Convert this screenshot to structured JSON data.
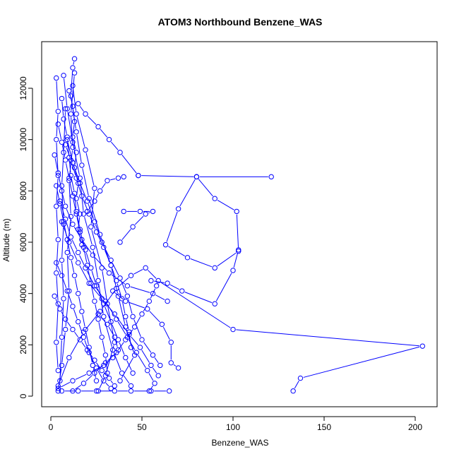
{
  "chart_data": {
    "type": "line",
    "title": "ATOM3 Northbound Benzene_WAS",
    "xlabel": "Benzene_WAS",
    "ylabel": "Altitude (m)",
    "xlim": [
      0,
      210
    ],
    "ylim": [
      0,
      13200
    ],
    "x_ticks": [
      0,
      50,
      100,
      150,
      200
    ],
    "y_ticks": [
      0,
      2000,
      4000,
      6000,
      8000,
      10000,
      12000
    ],
    "marker": "open-circle",
    "grid": false,
    "legend": "none",
    "colors": {
      "series": "#0000ff",
      "axes": "#000000"
    },
    "series": [
      {
        "points": [
          [
            4,
            200
          ],
          [
            6,
            1200
          ],
          [
            8,
            2600
          ],
          [
            10,
            4100
          ],
          [
            9,
            5600
          ],
          [
            11,
            7000
          ],
          [
            10,
            8400
          ],
          [
            12,
            9700
          ],
          [
            11,
            11000
          ],
          [
            13,
            12600
          ]
        ]
      },
      {
        "points": [
          [
            12,
            12100
          ],
          [
            14,
            11000
          ],
          [
            19,
            9600
          ],
          [
            24,
            8100
          ],
          [
            22,
            6600
          ],
          [
            28,
            5000
          ],
          [
            31,
            3600
          ],
          [
            35,
            2100
          ],
          [
            30,
            800
          ],
          [
            26,
            200
          ]
        ]
      },
      {
        "points": [
          [
            48,
            8600
          ],
          [
            80,
            8550
          ],
          [
            121,
            8550
          ]
        ]
      },
      {
        "points": [
          [
            4,
            400
          ],
          [
            10,
            1500
          ],
          [
            18,
            2500
          ],
          [
            27,
            3300
          ],
          [
            36,
            4200
          ],
          [
            44,
            4700
          ],
          [
            52,
            5000
          ],
          [
            59,
            4500
          ],
          [
            100,
            2600
          ],
          [
            204,
            1950
          ],
          [
            137,
            700
          ],
          [
            133,
            200
          ]
        ]
      },
      {
        "points": [
          [
            15,
            11400
          ],
          [
            19,
            11000
          ],
          [
            26,
            10500
          ],
          [
            32,
            10000
          ],
          [
            38,
            9500
          ],
          [
            48,
            8600
          ]
        ]
      },
      {
        "points": [
          [
            80,
            8550
          ],
          [
            70,
            7300
          ],
          [
            63,
            5900
          ],
          [
            75,
            5400
          ],
          [
            90,
            5000
          ],
          [
            103,
            5650
          ],
          [
            102,
            7200
          ],
          [
            90,
            7700
          ],
          [
            80,
            8550
          ]
        ]
      },
      {
        "points": [
          [
            40,
            7200
          ],
          [
            49,
            7200
          ],
          [
            56,
            7200
          ],
          [
            52,
            7100
          ],
          [
            45,
            6600
          ],
          [
            38,
            6000
          ]
        ]
      },
      {
        "points": [
          [
            65,
            200
          ],
          [
            55,
            200
          ],
          [
            44,
            200
          ],
          [
            35,
            200
          ],
          [
            25,
            200
          ],
          [
            15,
            200
          ],
          [
            6,
            200
          ]
        ]
      },
      {
        "points": [
          [
            5,
            600
          ],
          [
            6,
            2300
          ],
          [
            7,
            3800
          ],
          [
            6,
            5300
          ],
          [
            7,
            6700
          ],
          [
            6,
            8200
          ],
          [
            7,
            9500
          ],
          [
            8,
            11200
          ]
        ]
      },
      {
        "points": [
          [
            3,
            12400
          ],
          [
            4,
            11100
          ],
          [
            3,
            10000
          ],
          [
            4,
            8600
          ],
          [
            3,
            7400
          ],
          [
            4,
            6100
          ],
          [
            3,
            4800
          ],
          [
            4,
            3600
          ],
          [
            3,
            2100
          ],
          [
            4,
            1000
          ]
        ]
      },
      {
        "points": [
          [
            13,
            13150
          ],
          [
            12,
            12800
          ],
          [
            11,
            11700
          ],
          [
            14,
            10300
          ],
          [
            17,
            9000
          ],
          [
            21,
            7700
          ],
          [
            27,
            6300
          ],
          [
            33,
            5100
          ],
          [
            37,
            3900
          ],
          [
            41,
            2700
          ],
          [
            46,
            1600
          ],
          [
            38,
            600
          ]
        ]
      },
      {
        "points": [
          [
            7,
            12500
          ],
          [
            9,
            11200
          ],
          [
            12,
            9900
          ],
          [
            16,
            8500
          ],
          [
            18,
            7100
          ],
          [
            23,
            5800
          ],
          [
            26,
            4500
          ],
          [
            29,
            3100
          ],
          [
            34,
            1800
          ],
          [
            39,
            900
          ],
          [
            44,
            400
          ]
        ]
      },
      {
        "points": [
          [
            34,
            4100
          ],
          [
            41,
            3700
          ],
          [
            53,
            3400
          ],
          [
            61,
            2800
          ],
          [
            66,
            2100
          ],
          [
            66,
            1300
          ],
          [
            70,
            1100
          ]
        ]
      },
      {
        "points": [
          [
            6,
            6800
          ],
          [
            10,
            6000
          ],
          [
            15,
            5200
          ],
          [
            21,
            4400
          ],
          [
            28,
            3800
          ],
          [
            35,
            3200
          ],
          [
            43,
            2400
          ],
          [
            49,
            1900
          ],
          [
            55,
            1200
          ],
          [
            59,
            800
          ]
        ]
      },
      {
        "points": [
          [
            2,
            9400
          ],
          [
            4,
            8700
          ],
          [
            6,
            8000
          ],
          [
            8,
            7400
          ],
          [
            12,
            6700
          ],
          [
            17,
            6100
          ],
          [
            23,
            5500
          ],
          [
            32,
            4800
          ],
          [
            42,
            4300
          ],
          [
            56,
            4000
          ],
          [
            64,
            3700
          ]
        ]
      },
      {
        "points": [
          [
            20,
            7200
          ],
          [
            24,
            7600
          ],
          [
            27,
            8000
          ],
          [
            31,
            8400
          ],
          [
            37,
            8500
          ],
          [
            40,
            8550
          ]
        ]
      },
      {
        "points": [
          [
            9,
            10000
          ],
          [
            12,
            9100
          ],
          [
            16,
            8300
          ],
          [
            20,
            7600
          ],
          [
            24,
            6800
          ],
          [
            28,
            6000
          ],
          [
            33,
            5300
          ],
          [
            38,
            4600
          ],
          [
            42,
            3900
          ],
          [
            45,
            3100
          ],
          [
            50,
            2200
          ],
          [
            56,
            1600
          ],
          [
            60,
            1200
          ]
        ]
      },
      {
        "points": [
          [
            4,
            300
          ],
          [
            12,
            600
          ],
          [
            21,
            900
          ],
          [
            29,
            1200
          ],
          [
            34,
            1500
          ],
          [
            37,
            1800
          ],
          [
            35,
            2300
          ],
          [
            31,
            2800
          ],
          [
            26,
            3200
          ]
        ]
      },
      {
        "points": [
          [
            55,
            4500
          ],
          [
            64,
            4400
          ],
          [
            72,
            4100
          ],
          [
            90,
            3600
          ],
          [
            100,
            4900
          ],
          [
            103,
            5700
          ]
        ]
      },
      {
        "points": [
          [
            3,
            5200
          ],
          [
            6,
            4700
          ],
          [
            9,
            4100
          ],
          [
            12,
            3500
          ],
          [
            15,
            2900
          ],
          [
            18,
            2300
          ],
          [
            21,
            1700
          ],
          [
            25,
            1100
          ],
          [
            29,
            600
          ],
          [
            33,
            300
          ]
        ]
      },
      {
        "points": [
          [
            5,
            7600
          ],
          [
            8,
            6900
          ],
          [
            11,
            6200
          ],
          [
            15,
            5600
          ],
          [
            19,
            5000
          ],
          [
            24,
            4300
          ],
          [
            30,
            3700
          ],
          [
            36,
            3000
          ],
          [
            42,
            2300
          ],
          [
            47,
            1700
          ],
          [
            53,
            1000
          ],
          [
            57,
            500
          ],
          [
            54,
            200
          ]
        ]
      },
      {
        "points": [
          [
            10,
            11900
          ],
          [
            12,
            11300
          ],
          [
            13,
            10700
          ],
          [
            12,
            10100
          ],
          [
            14,
            9500
          ],
          [
            13,
            8900
          ],
          [
            15,
            8300
          ],
          [
            14,
            7700
          ],
          [
            16,
            7100
          ],
          [
            15,
            6500
          ],
          [
            17,
            5900
          ]
        ]
      },
      {
        "points": [
          [
            8,
            9800
          ],
          [
            11,
            9200
          ],
          [
            14,
            8500
          ],
          [
            17,
            7800
          ],
          [
            21,
            7100
          ],
          [
            25,
            6400
          ],
          [
            29,
            5800
          ],
          [
            33,
            5100
          ],
          [
            36,
            4500
          ],
          [
            39,
            3800
          ],
          [
            41,
            3100
          ],
          [
            43,
            2500
          ],
          [
            44,
            1900
          ]
        ]
      },
      {
        "points": [
          [
            2,
            3900
          ],
          [
            5,
            3400
          ],
          [
            8,
            3000
          ],
          [
            12,
            2600
          ],
          [
            16,
            2200
          ],
          [
            20,
            1800
          ],
          [
            24,
            1400
          ],
          [
            28,
            1000
          ],
          [
            32,
            700
          ],
          [
            35,
            400
          ]
        ]
      },
      {
        "points": [
          [
            6,
            11600
          ],
          [
            7,
            10800
          ],
          [
            9,
            10100
          ],
          [
            10,
            9300
          ],
          [
            11,
            8600
          ],
          [
            13,
            7900
          ],
          [
            14,
            7200
          ],
          [
            16,
            6500
          ],
          [
            18,
            5800
          ],
          [
            20,
            5100
          ],
          [
            22,
            4400
          ],
          [
            24,
            3700
          ],
          [
            26,
            3000
          ],
          [
            28,
            2300
          ],
          [
            30,
            1600
          ],
          [
            31,
            900
          ]
        ]
      },
      {
        "points": [
          [
            12,
            200
          ],
          [
            18,
            500
          ],
          [
            24,
            900
          ],
          [
            30,
            1300
          ],
          [
            36,
            1700
          ],
          [
            41,
            2200
          ],
          [
            46,
            2700
          ],
          [
            50,
            3200
          ],
          [
            54,
            3700
          ],
          [
            58,
            4300
          ]
        ]
      },
      {
        "points": [
          [
            3,
            8200
          ],
          [
            5,
            7500
          ],
          [
            7,
            6800
          ],
          [
            9,
            6100
          ],
          [
            11,
            5400
          ],
          [
            13,
            4700
          ],
          [
            15,
            4000
          ],
          [
            17,
            3300
          ],
          [
            19,
            2600
          ],
          [
            21,
            1900
          ],
          [
            23,
            1200
          ],
          [
            25,
            600
          ]
        ]
      },
      {
        "points": [
          [
            4,
            10600
          ],
          [
            6,
            9900
          ],
          [
            8,
            9200
          ],
          [
            10,
            8500
          ],
          [
            12,
            7800
          ],
          [
            14,
            7100
          ],
          [
            16,
            6400
          ],
          [
            19,
            5700
          ],
          [
            22,
            5000
          ],
          [
            25,
            4300
          ],
          [
            29,
            3600
          ],
          [
            33,
            2900
          ],
          [
            37,
            2200
          ],
          [
            41,
            1500
          ],
          [
            45,
            900
          ]
        ]
      }
    ]
  }
}
